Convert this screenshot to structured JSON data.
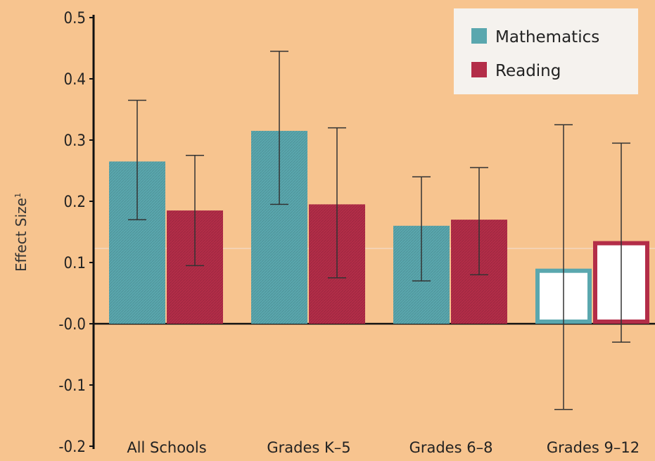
{
  "chart_data": {
    "type": "bar",
    "ylabel": "Effect Size",
    "ylabel_superscript": "1",
    "ylim": [
      -0.2,
      0.5
    ],
    "yticks": [
      0.5,
      0.4,
      0.3,
      0.2,
      0.1,
      0.0,
      -0.1,
      -0.2
    ],
    "ytick_labels": [
      "0.5",
      "0.4",
      "0.3",
      "0.2",
      "0.1",
      "-0.0",
      "-0.1",
      "-0.2"
    ],
    "categories": [
      "All Schools",
      "Grades K–5",
      "Grades 6–8",
      "Grades 9–12"
    ],
    "series": [
      {
        "name": "Mathematics",
        "color": "#5aa7ae",
        "values": [
          0.265,
          0.315,
          0.16,
          0.09
        ],
        "error_low": [
          0.17,
          0.195,
          0.07,
          -0.14
        ],
        "error_high": [
          0.365,
          0.445,
          0.24,
          0.325
        ],
        "filled": [
          true,
          true,
          true,
          false
        ]
      },
      {
        "name": "Reading",
        "color": "#b32d48",
        "values": [
          0.185,
          0.195,
          0.17,
          0.135
        ],
        "error_low": [
          0.095,
          0.075,
          0.08,
          -0.03
        ],
        "error_high": [
          0.275,
          0.32,
          0.255,
          0.295
        ],
        "filled": [
          true,
          true,
          true,
          false
        ]
      }
    ],
    "legend_position": "top-right",
    "grid": false
  }
}
